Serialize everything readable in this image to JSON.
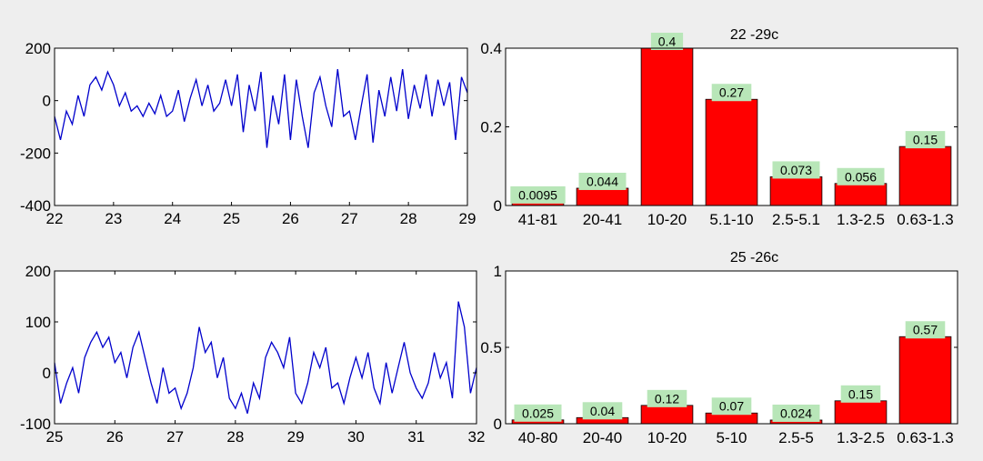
{
  "chart_data": [
    {
      "id": "ts1",
      "type": "line",
      "title": "",
      "xlabel": "",
      "ylabel": "",
      "xlim": [
        22,
        29
      ],
      "ylim": [
        -400,
        200
      ],
      "xticks": [
        "22",
        "23",
        "24",
        "25",
        "26",
        "27",
        "28",
        "29"
      ],
      "yticks": [
        "-400",
        "-200",
        "0",
        "200"
      ],
      "series": [
        {
          "color": "#0000cc",
          "x": [
            22.0,
            22.1,
            22.2,
            22.3,
            22.4,
            22.5,
            22.6,
            22.7,
            22.8,
            22.9,
            23.0,
            23.1,
            23.2,
            23.3,
            23.4,
            23.5,
            23.6,
            23.7,
            23.8,
            23.9,
            24.0,
            24.1,
            24.2,
            24.3,
            24.4,
            24.5,
            24.6,
            24.7,
            24.8,
            24.9,
            25.0,
            25.1,
            25.2,
            25.3,
            25.4,
            25.5,
            25.6,
            25.7,
            25.8,
            25.9,
            26.0,
            26.1,
            26.2,
            26.3,
            26.4,
            26.5,
            26.6,
            26.7,
            26.8,
            26.9,
            27.0,
            27.1,
            27.2,
            27.3,
            27.4,
            27.5,
            27.6,
            27.7,
            27.8,
            27.9,
            28.0,
            28.1,
            28.2,
            28.3,
            28.4,
            28.5,
            28.6,
            28.7,
            28.8,
            28.9,
            29.0
          ],
          "y": [
            -60,
            -150,
            -40,
            -90,
            20,
            -60,
            60,
            90,
            40,
            110,
            60,
            -20,
            30,
            -40,
            -20,
            -60,
            -10,
            -50,
            20,
            -60,
            -40,
            40,
            -80,
            10,
            80,
            -20,
            60,
            -40,
            -10,
            80,
            -20,
            100,
            -120,
            60,
            -40,
            110,
            -180,
            20,
            -90,
            100,
            -150,
            80,
            -60,
            -180,
            30,
            90,
            -20,
            -100,
            120,
            -60,
            -40,
            -150,
            -20,
            100,
            -160,
            40,
            -60,
            90,
            -40,
            120,
            -70,
            60,
            -30,
            100,
            -60,
            80,
            -20,
            70,
            -150,
            90,
            30
          ]
        }
      ]
    },
    {
      "id": "bar1",
      "type": "bar",
      "title": "22 -29c",
      "xlabel": "",
      "ylabel": "",
      "ylim": [
        0,
        0.4
      ],
      "yticks": [
        "0",
        "0.2",
        "0.4"
      ],
      "color": "#ff0000",
      "categories": [
        "41-81",
        "20-41",
        "10-20",
        "5.1-10",
        "2.5-5.1",
        "1.3-2.5",
        "0.63-1.3"
      ],
      "values": [
        0.0095,
        0.044,
        0.4,
        0.27,
        0.073,
        0.056,
        0.15
      ],
      "labels": [
        "0.0095",
        "0.044",
        "0.4",
        "0.27",
        "0.073",
        "0.056",
        "0.15"
      ]
    },
    {
      "id": "ts2",
      "type": "line",
      "title": "",
      "xlabel": "",
      "ylabel": "",
      "xlim": [
        25,
        32
      ],
      "ylim": [
        -100,
        200
      ],
      "xticks": [
        "25",
        "26",
        "27",
        "28",
        "29",
        "30",
        "31",
        "32"
      ],
      "yticks": [
        "-100",
        "0",
        "100",
        "200"
      ],
      "series": [
        {
          "color": "#0000cc",
          "x": [
            25.0,
            25.1,
            25.2,
            25.3,
            25.4,
            25.5,
            25.6,
            25.7,
            25.8,
            25.9,
            26.0,
            26.1,
            26.2,
            26.3,
            26.4,
            26.5,
            26.6,
            26.7,
            26.8,
            26.9,
            27.0,
            27.1,
            27.2,
            27.3,
            27.4,
            27.5,
            27.6,
            27.7,
            27.8,
            27.9,
            28.0,
            28.1,
            28.2,
            28.3,
            28.4,
            28.5,
            28.6,
            28.7,
            28.8,
            28.9,
            29.0,
            29.1,
            29.2,
            29.3,
            29.4,
            29.5,
            29.6,
            29.7,
            29.8,
            29.9,
            30.0,
            30.1,
            30.2,
            30.3,
            30.4,
            30.5,
            30.6,
            30.7,
            30.8,
            30.9,
            31.0,
            31.1,
            31.2,
            31.3,
            31.4,
            31.5,
            31.6,
            31.7,
            31.8,
            31.9,
            32.0
          ],
          "y": [
            20,
            -60,
            -20,
            10,
            -40,
            30,
            60,
            80,
            50,
            70,
            20,
            40,
            -10,
            50,
            80,
            30,
            -20,
            -60,
            10,
            -40,
            -30,
            -70,
            -40,
            10,
            90,
            40,
            60,
            -10,
            30,
            -50,
            -70,
            -40,
            -80,
            -20,
            -50,
            30,
            60,
            40,
            10,
            70,
            -40,
            -60,
            -20,
            40,
            10,
            50,
            -30,
            -20,
            -60,
            -10,
            30,
            -10,
            40,
            -30,
            -60,
            20,
            -40,
            10,
            60,
            0,
            -30,
            -50,
            -20,
            40,
            -10,
            20,
            -50,
            140,
            90,
            -40,
            10
          ]
        }
      ]
    },
    {
      "id": "bar2",
      "type": "bar",
      "title": "25 -26c",
      "xlabel": "",
      "ylabel": "",
      "ylim": [
        0,
        1
      ],
      "yticks": [
        "0",
        "0.5",
        "1"
      ],
      "color": "#ff0000",
      "categories": [
        "40-80",
        "20-40",
        "10-20",
        "5-10",
        "2.5-5",
        "1.3-2.5",
        "0.63-1.3"
      ],
      "values": [
        0.025,
        0.04,
        0.12,
        0.07,
        0.024,
        0.15,
        0.57
      ],
      "labels": [
        "0.025",
        "0.04",
        "0.12",
        "0.07",
        "0.024",
        "0.15",
        "0.57"
      ]
    }
  ]
}
